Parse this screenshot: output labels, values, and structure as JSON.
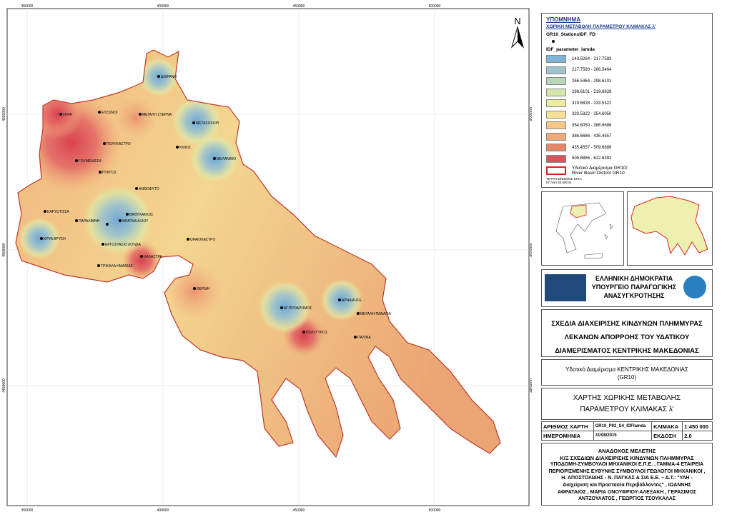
{
  "map": {
    "x_labels": [
      "350000",
      "400000",
      "450000",
      "500000"
    ],
    "y_labels": [
      "4550000",
      "4500000",
      "4450000"
    ],
    "north": "N",
    "stations": [
      "ΔΟΙΡΑΝΗ",
      "ΕΥΖΩΝΟΙ",
      "ΜΕΓΑΛΗ ΣΤΕΡΝΑ",
      "ΣΚΡΑ",
      "ΜΕΤΑΣΟΧΩΡΙ",
      "ΠΟΛΥΚΑΣΤΡΟ",
      "ΚΙΛΚΙΣ",
      "ΜΕΛΑΝΘΙΟ",
      "ΓΟΥΜΕΝΙΣΣΑ",
      "ΠΥΡΓΟΣ",
      "ΑΝΘΟΦΥΤΟ",
      "ΚΑΡΥΩΤΙΣΣΑ",
      "ΒΑΘΥΛΑΚΚΟΣ",
      "ΠΑΡΑΛΙΜΝΗ",
      "ΦΡΑΓΜΑ ΑΞΙΟΥ",
      "ΚΡΥΑ ΒΡΥΣΗ",
      "ΩΡΑΙΟΚΑΣΤΡΟ",
      "ΕΡΓΟΣΤΑΣΙΟ ΛΟΥΔΙΑ",
      "ΧΑΛΑΣΤΡΑ",
      "ΤΡΙΚΑΛΑ ΗΜΑΘΙΑΣ",
      "ΘΕΡΜΗ",
      "ΑΡΝΑΙΑ-ΙΣΕ",
      "ΑΓ.ΠΡΟΔΡΟΜΟΣ",
      "ΜΕΓΑΛΗ ΠΑΝΑΓΙΑ",
      "ΠΟΛΥΓΥΡΟΣ",
      "ΠΑΛΙΝΑ"
    ]
  },
  "legend": {
    "heading": "ΥΠΟΜΝΗΜΑ",
    "title": "ΧΩΡΙΚΗ ΜΕΤΑΒΟΛΗ ΠΑΡΑΜΕΤΡΟΥ ΚΛΙΜΑΚΑΣ λ'",
    "stations_layer": "GR10_StationsIDF_FD",
    "raster_layer": "IDF_parameter_lamda",
    "classes": [
      {
        "label": "143.5264 - 217.7593",
        "color": "#7fb3d8"
      },
      {
        "label": "217.7593 - 266.5464",
        "color": "#9fc2cc"
      },
      {
        "label": "266.5464 - 298.6101",
        "color": "#bad6b9"
      },
      {
        "label": "298.6101 - 319.6828",
        "color": "#d6e6aa"
      },
      {
        "label": "319.6828 - 333.5322",
        "color": "#ecec9f"
      },
      {
        "label": "333.5322 - 354.6050",
        "color": "#f6e197"
      },
      {
        "label": "354.6050 - 386.6686",
        "color": "#f6c886"
      },
      {
        "label": "386.6686 - 435.4557",
        "color": "#f1a878"
      },
      {
        "label": "435.4557 - 509.6886",
        "color": "#e9866a"
      },
      {
        "label": "509.6886 - 622.6392",
        "color": "#d9535c"
      }
    ],
    "boundary": [
      "Υδατικό Διαμέρισμα GR10/",
      "River Basin District GR10"
    ],
    "grid_note": [
      "ΤΕΤΡΑΓΩΝΙΣΜΟΣ ΕΓΣΑ",
      "87 ΑΝΑ 50.000 Μ."
    ]
  },
  "ministry": [
    "ΕΛΛΗΝΙΚΗ ΔΗΜΟΚΡΑΤΙΑ",
    "ΥΠΟΥΡΓΕΙΟ ΠΑΡΑΓΩΓΙΚΗΣ",
    "ΑΝΑΣΥΓΚΡΟΤΗΣΗΣ"
  ],
  "project": [
    "ΣΧΕΔΙΑ ΔΙΑΧΕΙΡΙΣΗΣ ΚΙΝΔΥΝΩΝ ΠΛΗΜΜΥΡΑΣ",
    "ΛΕΚΑΝΩΝ ΑΠΟΡΡΟΗΣ ΤΟΥ ΥΔΑΤΙΚΟΥ",
    "ΔΙΑΜΕΡΙΣΜΑΤΟΣ ΚΕΝΤΡΙΚΗΣ ΜΑΚΕΔΟΝΙΑΣ"
  ],
  "district": [
    "Υδατικό Διαμέρισμα ΚΕΝΤΡΙΚΗΣ ΜΑΚΕΔΟΝΙΑΣ",
    "(GR10)"
  ],
  "map_title": [
    "ΧΑΡΤΗΣ ΧΩΡΙΚΗΣ ΜΕΤΑΒΟΛΗΣ",
    "ΠΑΡΑΜΕΤΡΟΥ ΚΛΙΜΑΚΑΣ λ'"
  ],
  "table": {
    "rows": [
      [
        "ΑΡΙΘΜΟΣ ΧΑΡΤΗ",
        "GR10_P02_S4_IDFlamda",
        "ΚΛΙΜΑΚΑ",
        "1:450 000"
      ],
      [
        "ΗΜΕΡΟΜΗΝΙΑ",
        "31/08/2015",
        "ΕΚΔΟΣΗ",
        "2.0"
      ]
    ]
  },
  "contractor": [
    "ΑΝΑΔΟΧΟΣ ΜΕΛΕΤΗΣ",
    "Κ/Ξ ΣΧΕΔΙΩΝ ΔΙΑΧΕΙΡΙΣΗΣ ΚΙΝΔΥΝΩΝ ΠΛΗΜΜΥΡΑΣ",
    "ΥΠΟΔΟΜΗ-ΣΥΜΒΟΥΛΟΙ ΜΗΧΑΝΙΚΟΙ Ε.Π.Ε. , ΓΑΜΜΑ-4 ΕΤΑΙΡΕΙΑ",
    "ΠΕΡΙΟΡΙΣΜΕΝΗΣ ΕΥΘΥΝΗΣ ΣΥΜΒΟΥΛΟΙ ΓΕΩΛΟΓΟΙ ΜΗΧΑΝΙΚΟΙ ,",
    "Η. ΑΠΟΣΤΟΛΙΔΗΣ - Ν. ΠΑΓΚΑΣ & ΣΙΑ Ε.Ε. – Δ.Τ.: \"ΥΛΗ -",
    "Διαχείριση και Προστασία Περιβάλλοντος\" , ΙΩΑΝΝΗΣ",
    "ΑΦΡΑΤΑΙΟΣ , ΜΑΡΙΑ ΟΝΟΥΦΡΙΟΥ-ΑΛΕΞΑΚΗ , ΓΕΡΑΣΙΜΟΣ",
    "ΑΝΤΖΟΥΛΑΤΟΣ , ΓΕΩΡΓΙΟΣ ΤΣΟΥΚΑΛΑΣ"
  ]
}
